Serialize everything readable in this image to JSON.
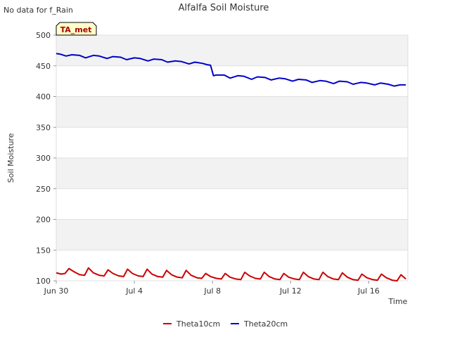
{
  "chart_data": {
    "type": "line",
    "title": "Alfalfa Soil Moisture",
    "note": "No data for f_Rain",
    "badge": "TA_met",
    "xlabel": "Time",
    "ylabel": "Soil Moisture",
    "ylim": [
      100,
      500
    ],
    "xlim_days": [
      0,
      18
    ],
    "y_ticks": [
      100,
      150,
      200,
      250,
      300,
      350,
      400,
      450,
      500
    ],
    "x_ticks": [
      {
        "day": 0,
        "label": "Jun 30"
      },
      {
        "day": 4,
        "label": "Jul 4"
      },
      {
        "day": 8,
        "label": "Jul 8"
      },
      {
        "day": 12,
        "label": "Jul 12"
      },
      {
        "day": 16,
        "label": "Jul 16"
      }
    ],
    "series": [
      {
        "name": "Theta10cm",
        "color": "#cc0000",
        "x": [
          0.0,
          0.25,
          0.45,
          0.65,
          0.9,
          1.2,
          1.45,
          1.65,
          1.9,
          2.2,
          2.45,
          2.65,
          2.9,
          3.2,
          3.45,
          3.65,
          3.9,
          4.2,
          4.45,
          4.65,
          4.9,
          5.2,
          5.45,
          5.65,
          5.9,
          6.2,
          6.45,
          6.65,
          6.9,
          7.2,
          7.45,
          7.65,
          7.9,
          8.2,
          8.45,
          8.65,
          8.9,
          9.2,
          9.45,
          9.65,
          9.9,
          10.2,
          10.45,
          10.65,
          10.9,
          11.2,
          11.45,
          11.65,
          11.9,
          12.2,
          12.45,
          12.65,
          12.9,
          13.2,
          13.45,
          13.65,
          13.9,
          14.2,
          14.45,
          14.65,
          14.9,
          15.2,
          15.45,
          15.65,
          15.9,
          16.2,
          16.45,
          16.65,
          16.9,
          17.2,
          17.45,
          17.65,
          17.9
        ],
        "values": [
          113,
          111,
          112,
          120,
          115,
          110,
          109,
          121,
          113,
          109,
          108,
          118,
          112,
          108,
          107,
          119,
          112,
          108,
          107,
          119,
          111,
          107,
          106,
          117,
          110,
          106,
          105,
          117,
          109,
          105,
          104,
          112,
          107,
          104,
          103,
          112,
          106,
          103,
          102,
          114,
          108,
          104,
          103,
          114,
          107,
          103,
          102,
          112,
          106,
          103,
          102,
          114,
          107,
          103,
          102,
          114,
          107,
          103,
          102,
          113,
          106,
          102,
          101,
          111,
          105,
          102,
          101,
          111,
          105,
          101,
          100,
          110,
          103
        ]
      },
      {
        "name": "Theta20cm",
        "color": "#0000cc",
        "x": [
          0.0,
          0.2,
          0.5,
          0.8,
          1.2,
          1.5,
          1.9,
          2.2,
          2.6,
          2.9,
          3.3,
          3.6,
          4.0,
          4.3,
          4.7,
          5.0,
          5.4,
          5.7,
          6.1,
          6.4,
          6.8,
          7.1,
          7.5,
          7.7,
          7.9,
          8.05,
          8.2,
          8.6,
          8.9,
          9.3,
          9.6,
          10.0,
          10.3,
          10.7,
          11.0,
          11.4,
          11.7,
          12.1,
          12.4,
          12.8,
          13.1,
          13.5,
          13.8,
          14.2,
          14.5,
          14.9,
          15.2,
          15.6,
          15.9,
          16.3,
          16.6,
          17.0,
          17.3,
          17.6,
          17.9
        ],
        "values": [
          470,
          469,
          466,
          468,
          467,
          463,
          467,
          466,
          462,
          465,
          464,
          460,
          463,
          462,
          458,
          461,
          460,
          456,
          458,
          457,
          453,
          456,
          454,
          452,
          451,
          434,
          435,
          435,
          430,
          434,
          433,
          428,
          432,
          431,
          427,
          430,
          429,
          425,
          428,
          427,
          423,
          426,
          425,
          421,
          425,
          424,
          420,
          423,
          422,
          419,
          422,
          420,
          417,
          419,
          419
        ]
      }
    ]
  }
}
